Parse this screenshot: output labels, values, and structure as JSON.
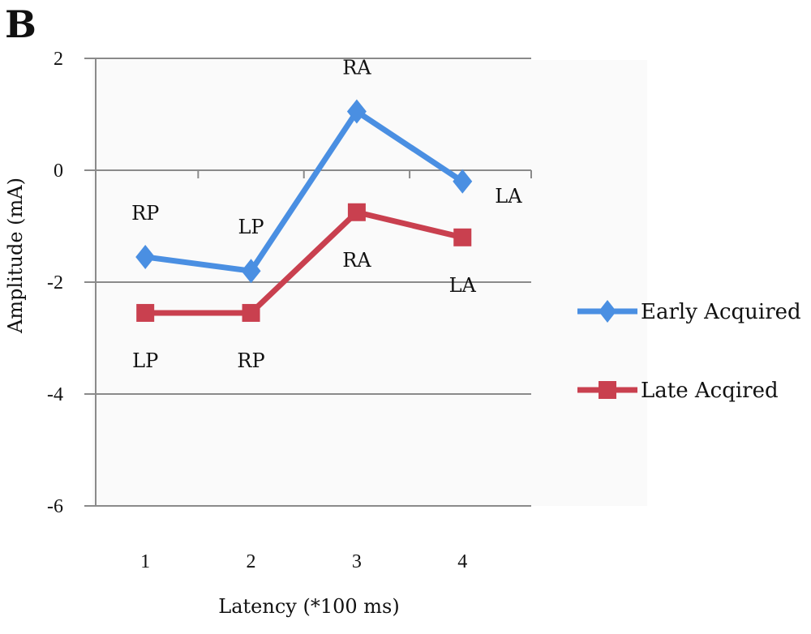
{
  "panel_label": "B",
  "chart_data": {
    "type": "line",
    "xlabel": "Latency (*100 ms)",
    "ylabel": "Amplitude (mA)",
    "x": [
      1,
      2,
      3,
      4
    ],
    "ylim": [
      -6,
      2
    ],
    "yticks": [
      2,
      0,
      -2,
      -4,
      -6
    ],
    "yticklabels": [
      "2",
      "0",
      "-2",
      "-4",
      "-6"
    ],
    "xticklabels": [
      "1",
      "2",
      "3",
      "4"
    ],
    "grid": "horizontal",
    "legend_position": "right",
    "series": [
      {
        "name": "Early Acquired",
        "color": "#4a8fe2",
        "marker": "diamond",
        "values": [
          -1.55,
          -1.8,
          1.05,
          -0.2
        ],
        "point_labels": [
          "RP",
          "LP",
          "RA",
          "LA"
        ],
        "label_placement": [
          "above",
          "above",
          "above",
          "right"
        ]
      },
      {
        "name": "Late Acqired",
        "color": "#c9404f",
        "marker": "square",
        "values": [
          -2.55,
          -2.55,
          -0.75,
          -1.2
        ],
        "point_labels": [
          "LP",
          "RP",
          "RA",
          "LA"
        ],
        "label_placement": [
          "below",
          "below",
          "below",
          "below"
        ]
      }
    ]
  }
}
